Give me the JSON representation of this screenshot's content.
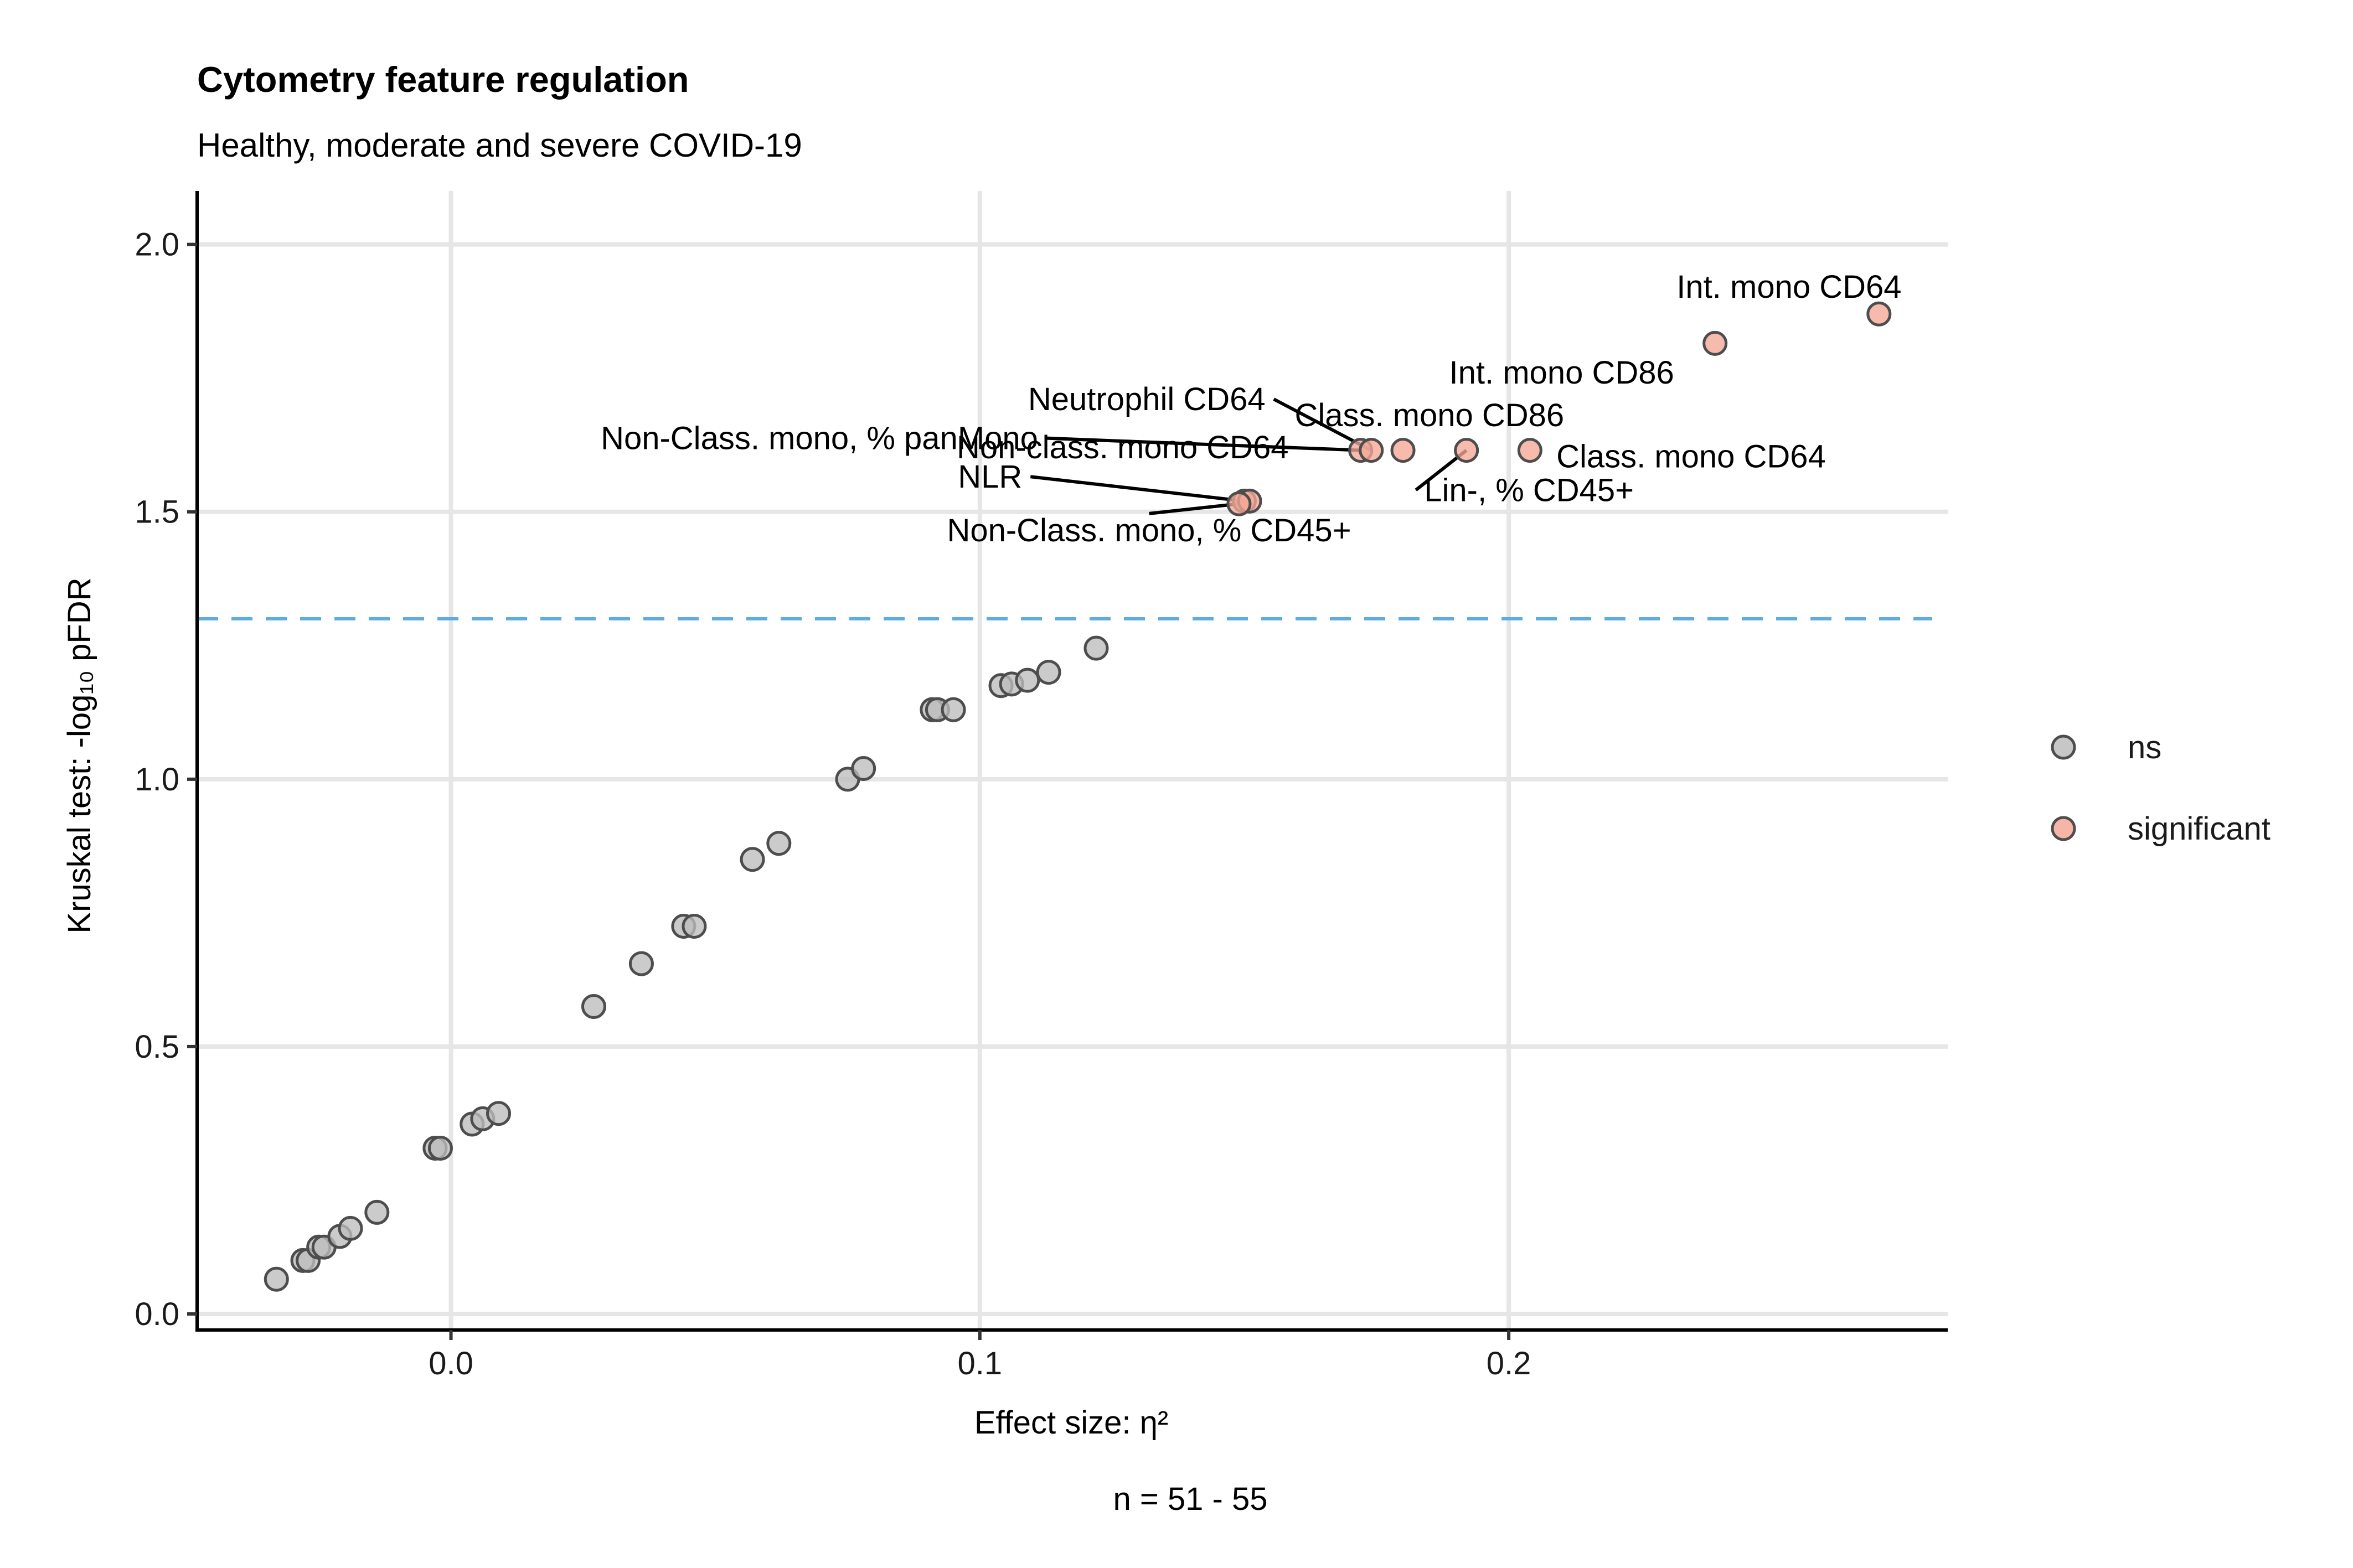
{
  "chart_data": {
    "type": "scatter",
    "title": "Cytometry feature regulation",
    "subtitle": "Healthy, moderate and severe COVID-19",
    "xlabel": "Effect size: η²",
    "ylabel": "Kruskal test: -log₁₀ pFDR",
    "caption": "n = 51 - 55",
    "xlim": [
      -0.048,
      0.283
    ],
    "ylim": [
      -0.03,
      2.1
    ],
    "x_ticks": [
      0.0,
      0.1,
      0.2
    ],
    "x_tick_labels": [
      "0.0",
      "0.1",
      "0.2"
    ],
    "y_ticks": [
      0.0,
      0.5,
      1.0,
      1.5,
      2.0
    ],
    "y_tick_labels": [
      "0.0",
      "0.5",
      "1.0",
      "1.5",
      "2.0"
    ],
    "grid": true,
    "threshold_line": {
      "y": 1.3,
      "style": "dashed",
      "color": "#5DADE2"
    },
    "legend": {
      "position": "right",
      "entries": [
        {
          "label": "ns",
          "color": "#BDBDBD"
        },
        {
          "label": "significant",
          "color": "#F4A896"
        }
      ]
    },
    "series": [
      {
        "name": "ns",
        "color": "#BDBDBD",
        "points": [
          {
            "x": -0.033,
            "y": 0.065
          },
          {
            "x": -0.028,
            "y": 0.1
          },
          {
            "x": -0.027,
            "y": 0.1
          },
          {
            "x": -0.025,
            "y": 0.125
          },
          {
            "x": -0.024,
            "y": 0.125
          },
          {
            "x": -0.021,
            "y": 0.145
          },
          {
            "x": -0.019,
            "y": 0.16
          },
          {
            "x": -0.014,
            "y": 0.19
          },
          {
            "x": -0.003,
            "y": 0.31
          },
          {
            "x": -0.002,
            "y": 0.31
          },
          {
            "x": 0.004,
            "y": 0.355
          },
          {
            "x": 0.006,
            "y": 0.365
          },
          {
            "x": 0.009,
            "y": 0.375
          },
          {
            "x": 0.027,
            "y": 0.575
          },
          {
            "x": 0.036,
            "y": 0.655
          },
          {
            "x": 0.044,
            "y": 0.725
          },
          {
            "x": 0.046,
            "y": 0.725
          },
          {
            "x": 0.057,
            "y": 0.85
          },
          {
            "x": 0.062,
            "y": 0.88
          },
          {
            "x": 0.075,
            "y": 1.0
          },
          {
            "x": 0.078,
            "y": 1.02
          },
          {
            "x": 0.091,
            "y": 1.13
          },
          {
            "x": 0.092,
            "y": 1.13
          },
          {
            "x": 0.095,
            "y": 1.13
          },
          {
            "x": 0.104,
            "y": 1.175
          },
          {
            "x": 0.106,
            "y": 1.178
          },
          {
            "x": 0.109,
            "y": 1.185
          },
          {
            "x": 0.113,
            "y": 1.2
          },
          {
            "x": 0.122,
            "y": 1.245
          }
        ]
      },
      {
        "name": "significant",
        "color": "#F4A896",
        "points": [
          {
            "x": 0.15,
            "y": 1.52,
            "label": "NLR",
            "lx": 0.108,
            "ly": 1.545,
            "anchor": "end",
            "leader": true
          },
          {
            "x": 0.151,
            "y": 1.52,
            "label": "Non-class. mono CD64",
            "lx": 0.127,
            "ly": 1.6,
            "anchor": "middle",
            "leader": false
          },
          {
            "x": 0.149,
            "y": 1.515,
            "label": "Non-Class. mono, % CD45+",
            "lx": 0.132,
            "ly": 1.445,
            "anchor": "middle",
            "leader": true
          },
          {
            "x": 0.172,
            "y": 1.615,
            "label": "Non-Class. mono, % panMono",
            "lx": 0.111,
            "ly": 1.617,
            "anchor": "end",
            "leader": true
          },
          {
            "x": 0.174,
            "y": 1.615,
            "label": "Neutrophil CD64",
            "lx": 0.154,
            "ly": 1.69,
            "anchor": "end",
            "leader": true
          },
          {
            "x": 0.18,
            "y": 1.615,
            "label": "Class. mono CD86",
            "lx": 0.185,
            "ly": 1.66,
            "anchor": "middle",
            "leader": false
          },
          {
            "x": 0.192,
            "y": 1.615,
            "label": "Lin-, % CD45+",
            "lx": 0.184,
            "ly": 1.52,
            "anchor": "start",
            "leader": true
          },
          {
            "x": 0.204,
            "y": 1.615,
            "label": "Class. mono CD64",
            "lx": 0.209,
            "ly": 1.583,
            "anchor": "start",
            "leader": false
          },
          {
            "x": 0.239,
            "y": 1.815,
            "label": "Int. mono CD86",
            "lx": 0.21,
            "ly": 1.74,
            "anchor": "middle",
            "leader": false
          },
          {
            "x": 0.27,
            "y": 1.87,
            "label": "Int. mono CD64",
            "lx": 0.253,
            "ly": 1.9,
            "anchor": "middle",
            "leader": false
          }
        ]
      }
    ]
  }
}
